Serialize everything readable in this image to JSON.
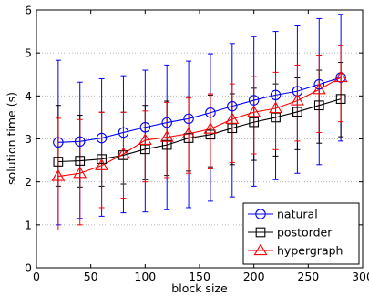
{
  "chart_data": {
    "type": "line",
    "title": "",
    "xlabel": "block size",
    "ylabel": "solution time (s)",
    "xlim": [
      0,
      300
    ],
    "ylim": [
      0,
      6
    ],
    "xticks": [
      0,
      50,
      100,
      150,
      200,
      250,
      300
    ],
    "yticks": [
      0,
      1,
      2,
      3,
      4,
      5,
      6
    ],
    "grid": "horizontal dotted",
    "legend_position": "bottom-right",
    "x": [
      20,
      40,
      60,
      80,
      100,
      120,
      140,
      160,
      180,
      200,
      220,
      240,
      260,
      280
    ],
    "series": [
      {
        "name": "natural",
        "color": "#0000ff",
        "marker": "circle",
        "values": [
          2.92,
          2.94,
          3.02,
          3.15,
          3.27,
          3.38,
          3.47,
          3.61,
          3.76,
          3.9,
          4.02,
          4.11,
          4.27,
          4.43
        ],
        "error_low": [
          1.0,
          1.15,
          1.2,
          1.28,
          1.3,
          1.35,
          1.4,
          1.55,
          1.65,
          1.9,
          2.05,
          2.2,
          2.4,
          2.95
        ],
        "error_high": [
          4.83,
          4.32,
          4.4,
          4.47,
          4.6,
          4.72,
          4.81,
          4.98,
          5.22,
          5.38,
          5.5,
          5.65,
          5.8,
          5.9
        ]
      },
      {
        "name": "postorder",
        "color": "#000000",
        "marker": "square",
        "values": [
          2.47,
          2.49,
          2.53,
          2.62,
          2.76,
          2.86,
          3.02,
          3.1,
          3.25,
          3.39,
          3.5,
          3.63,
          3.78,
          3.93
        ],
        "error_low": [
          1.9,
          1.88,
          1.9,
          1.95,
          2.05,
          2.15,
          2.25,
          2.35,
          2.4,
          2.5,
          2.6,
          2.75,
          2.9,
          3.05
        ],
        "error_high": [
          3.78,
          3.55,
          3.62,
          3.62,
          3.78,
          3.88,
          3.98,
          4.02,
          4.05,
          4.18,
          4.28,
          4.42,
          4.6,
          4.78
        ]
      },
      {
        "name": "hypergraph",
        "color": "#ff0000",
        "marker": "triangle",
        "values": [
          2.13,
          2.2,
          2.38,
          2.65,
          2.97,
          3.04,
          3.12,
          3.23,
          3.46,
          3.62,
          3.71,
          3.89,
          4.15,
          4.43
        ],
        "error_low": [
          0.88,
          1.0,
          1.4,
          1.62,
          2.0,
          2.1,
          2.2,
          2.3,
          2.45,
          2.65,
          2.75,
          2.95,
          3.15,
          3.4
        ],
        "error_high": [
          3.48,
          3.45,
          3.62,
          3.62,
          3.65,
          3.85,
          3.95,
          4.05,
          4.28,
          4.45,
          4.55,
          4.72,
          4.95,
          5.18
        ]
      }
    ]
  }
}
